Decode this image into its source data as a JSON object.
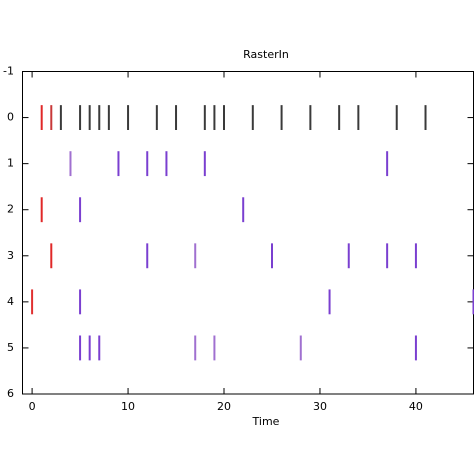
{
  "chart_data": {
    "type": "raster",
    "title": "RasterIn",
    "x_label": "Time",
    "xlim": [
      -1,
      46
    ],
    "xticks": [
      0,
      10,
      20,
      30,
      40
    ],
    "ylim": [
      6,
      -1
    ],
    "yticks": [
      -1,
      0,
      1,
      2,
      3,
      4,
      5,
      6
    ],
    "series": [
      {
        "y": 0,
        "x": [
          1,
          2,
          3,
          5,
          6,
          7,
          8,
          10,
          13,
          15,
          18,
          19,
          20,
          23,
          26,
          29,
          32,
          34,
          38,
          41
        ],
        "colors": [
          "#e02828",
          "#c83838",
          "#3a3a3a",
          "#3a3a3a",
          "#3a3a3a",
          "#3a3a3a",
          "#3a3a3a",
          "#3a3a3a",
          "#3a3a3a",
          "#3a3a3a",
          "#3a3a3a",
          "#3a3a3a",
          "#3a3a3a",
          "#3a3a3a",
          "#3a3a3a",
          "#3a3a3a",
          "#3a3a3a",
          "#3a3a3a",
          "#3a3a3a",
          "#3a3a3a"
        ]
      },
      {
        "y": 1,
        "x": [
          4,
          9,
          12,
          14,
          18,
          37
        ],
        "colors": [
          "#a070d0",
          "#7a3fd0",
          "#7a3fd0",
          "#7a3fd0",
          "#7a3fd0",
          "#7a3fd0"
        ]
      },
      {
        "y": 2,
        "x": [
          1,
          5,
          22
        ],
        "colors": [
          "#e02828",
          "#7a3fd0",
          "#7a3fd0"
        ]
      },
      {
        "y": 3,
        "x": [
          2,
          12,
          17,
          25,
          33,
          37,
          40
        ],
        "colors": [
          "#e02828",
          "#7a3fd0",
          "#a070d0",
          "#7a3fd0",
          "#7a3fd0",
          "#7a3fd0",
          "#7a3fd0"
        ]
      },
      {
        "y": 4,
        "x": [
          0,
          5,
          31,
          46
        ],
        "colors": [
          "#e03030",
          "#7a3fd0",
          "#7a3fd0",
          "#7a3fd0"
        ]
      },
      {
        "y": 5,
        "x": [
          5,
          6,
          7,
          17,
          19,
          28,
          40
        ],
        "colors": [
          "#7a3fd0",
          "#7a3fd0",
          "#7a3fd0",
          "#a070d0",
          "#a070d0",
          "#a070d0",
          "#7a3fd0"
        ]
      }
    ]
  }
}
